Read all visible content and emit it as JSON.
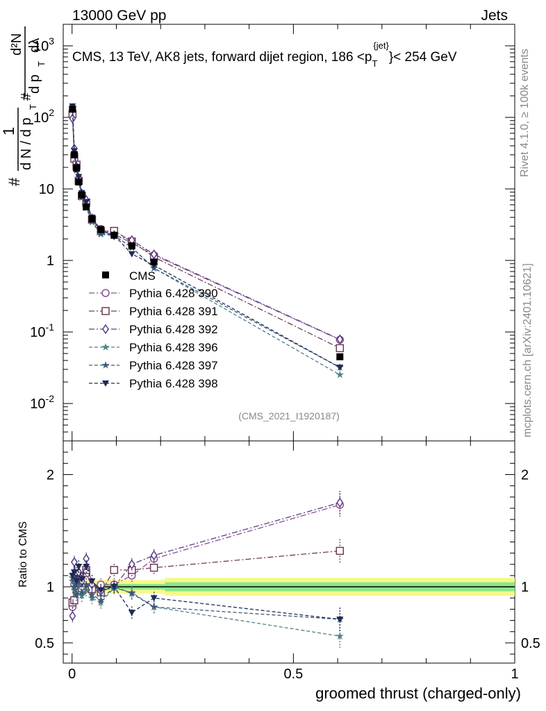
{
  "header": {
    "left": "13000 GeV pp",
    "right": "Jets"
  },
  "side_labels": {
    "rivet": "Rivet 4.1.0, ≥ 100k events",
    "mcplots": "mcplots.cern.ch [arXiv:2401.10621]"
  },
  "chart_data": {
    "type": "line",
    "title": "CMS, 13 TeV, AK8 jets, forward dijet region, 186 <p_T^{jet}< 254 GeV",
    "title_parts": {
      "prefix": "CMS, 13 TeV, AK8 jets, forward dijet region, 186 <p",
      "sub": "T",
      "sup": "{jet}",
      "suffix": "}< 254 GeV"
    },
    "ylabel": "# 1/(d N / d p_T #) d²N / (d p_T dλ)",
    "ylabel_parts": {
      "hash": "#",
      "one": "1",
      "den": "d N / d p",
      "num2": "d²N",
      "den2": "d p",
      "lambda": "dλ",
      "T": "T"
    },
    "xlabel": "groomed thrust (charged-only)",
    "ratio_ylabel": "Ratio to CMS",
    "analysis_tag": "(CMS_2021_I1920187)",
    "xlim": [
      -0.02,
      1.0
    ],
    "ylim": [
      0.003,
      2000
    ],
    "yscale": "log",
    "ratio_ylim": [
      0.32,
      2.3
    ],
    "x_ticks": [
      0,
      0.5,
      1
    ],
    "x_tick_labels": [
      "0",
      "0.5",
      "1"
    ],
    "y_tick_labels": {
      "0.01": "10^{-2}",
      "0.1": "10^{-1}",
      "1": "1",
      "10": "10",
      "100": "10^{2}",
      "1000": "10^{3}"
    },
    "ratio_ticks": [
      0.5,
      1,
      2
    ],
    "ratio_tick_labels": [
      "0.5",
      "1",
      "2"
    ],
    "x": [
      0.001,
      0.005,
      0.01,
      0.015,
      0.022,
      0.032,
      0.045,
      0.065,
      0.095,
      0.135,
      0.185,
      0.605
    ],
    "cms": {
      "name": "CMS",
      "values": [
        130,
        30,
        19.5,
        12.5,
        8.2,
        5.6,
        3.8,
        2.7,
        2.25,
        1.6,
        0.95,
        0.045
      ]
    },
    "series": [
      {
        "name": "Pythia 6.428 390",
        "color": "#8a4f8c",
        "marker": "circle",
        "dash": "dashdot",
        "ratio": [
          0.82,
          1.02,
          0.98,
          1.08,
          1.0,
          1.12,
          1.0,
          1.02,
          1.02,
          1.1,
          1.25,
          1.73
        ]
      },
      {
        "name": "Pythia 6.428 391",
        "color": "#6e3d55",
        "marker": "square",
        "dash": "dashdot",
        "ratio": [
          0.86,
          0.88,
          1.12,
          1.04,
          0.97,
          1.15,
          0.98,
          0.95,
          1.15,
          1.15,
          1.17,
          1.32
        ]
      },
      {
        "name": "Pythia 6.428 392",
        "color": "#5a3a8a",
        "marker": "diamond",
        "dash": "dashdot",
        "ratio": [
          0.74,
          1.22,
          1.05,
          1.13,
          1.05,
          1.25,
          1.02,
          0.96,
          1.0,
          1.2,
          1.28,
          1.75
        ]
      },
      {
        "name": "Pythia 6.428 396",
        "color": "#4f7f86",
        "marker": "star",
        "dash": "dashed",
        "ratio": [
          1.05,
          0.97,
          0.95,
          1.02,
          0.92,
          0.97,
          0.9,
          0.86,
          0.99,
          0.95,
          0.82,
          0.56
        ]
      },
      {
        "name": "Pythia 6.428 397",
        "color": "#3c5a78",
        "marker": "star",
        "dash": "dashed",
        "ratio": [
          1.08,
          1.0,
          0.93,
          1.05,
          0.95,
          1.02,
          0.93,
          0.88,
          1.0,
          0.94,
          0.82,
          0.71
        ]
      },
      {
        "name": "Pythia 6.428 398",
        "color": "#1f2a55",
        "marker": "triangle-down",
        "dash": "dashed",
        "ratio": [
          1.1,
          1.13,
          1.05,
          1.18,
          1.07,
          1.18,
          1.05,
          0.97,
          1.0,
          0.77,
          0.9,
          0.71
        ]
      }
    ]
  }
}
